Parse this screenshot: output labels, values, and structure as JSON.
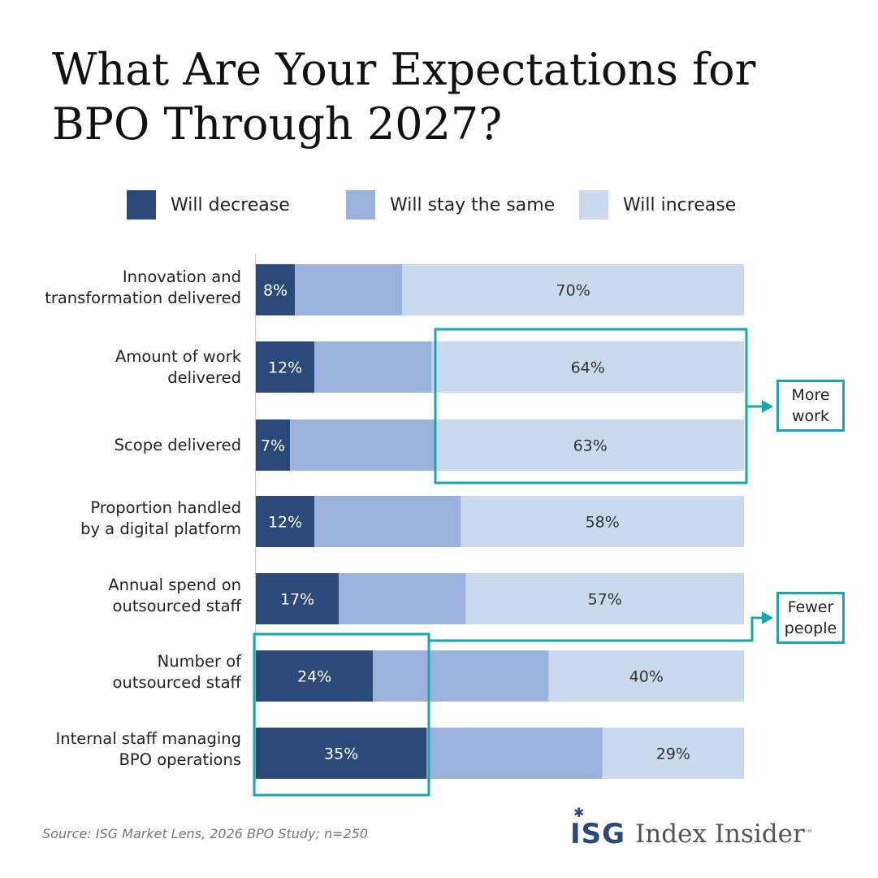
{
  "title": {
    "line1": "What Are Your Expectations for",
    "line2": "BPO Through 2027?"
  },
  "legend": [
    {
      "label": "Will decrease",
      "color": "#2b4a7a"
    },
    {
      "label": "Will stay the same",
      "color": "#9ab2dc"
    },
    {
      "label": "Will increase",
      "color": "#cbd9ef"
    }
  ],
  "chart_data": {
    "type": "bar",
    "orientation": "horizontal",
    "stacked": true,
    "title": "What Are Your Expectations for BPO Through 2027?",
    "xlim": [
      0,
      100
    ],
    "unit": "%",
    "categories": [
      [
        "Innovation and",
        "transformation delivered"
      ],
      [
        "Amount of work",
        "delivered"
      ],
      [
        "Scope delivered"
      ],
      [
        "Proportion handled",
        "by a digital platform"
      ],
      [
        "Annual spend on",
        "outsourced staff"
      ],
      [
        "Number of",
        "outsourced staff"
      ],
      [
        "Internal staff managing",
        "BPO operations"
      ]
    ],
    "series": [
      {
        "name": "Will decrease",
        "values": [
          8,
          12,
          7,
          12,
          17,
          24,
          35
        ],
        "labels": [
          "8%",
          "12%",
          "7%",
          "12%",
          "17%",
          "24%",
          "35%"
        ]
      },
      {
        "name": "Will stay the same",
        "values": [
          22,
          24,
          30,
          30,
          26,
          36,
          36
        ],
        "labels": [
          "",
          "",
          "",
          "",
          "",
          "",
          ""
        ]
      },
      {
        "name": "Will increase",
        "values": [
          70,
          64,
          63,
          58,
          57,
          40,
          29
        ],
        "labels": [
          "70%",
          "64%",
          "63%",
          "58%",
          "57%",
          "40%",
          "29%"
        ]
      }
    ]
  },
  "callouts": {
    "more_work": {
      "line1": "More",
      "line2": "work"
    },
    "fewer_people": {
      "line1": "Fewer",
      "line2": "people"
    }
  },
  "colors": {
    "accent": "#1aa6b1",
    "text_light": "#ffffff",
    "text_dark": "#333333"
  },
  "source": "Source: ISG Market Lens, 2026 BPO Study; n=250",
  "logo": {
    "brand": "ISG",
    "product": "Index Insider",
    "tm": "™"
  }
}
